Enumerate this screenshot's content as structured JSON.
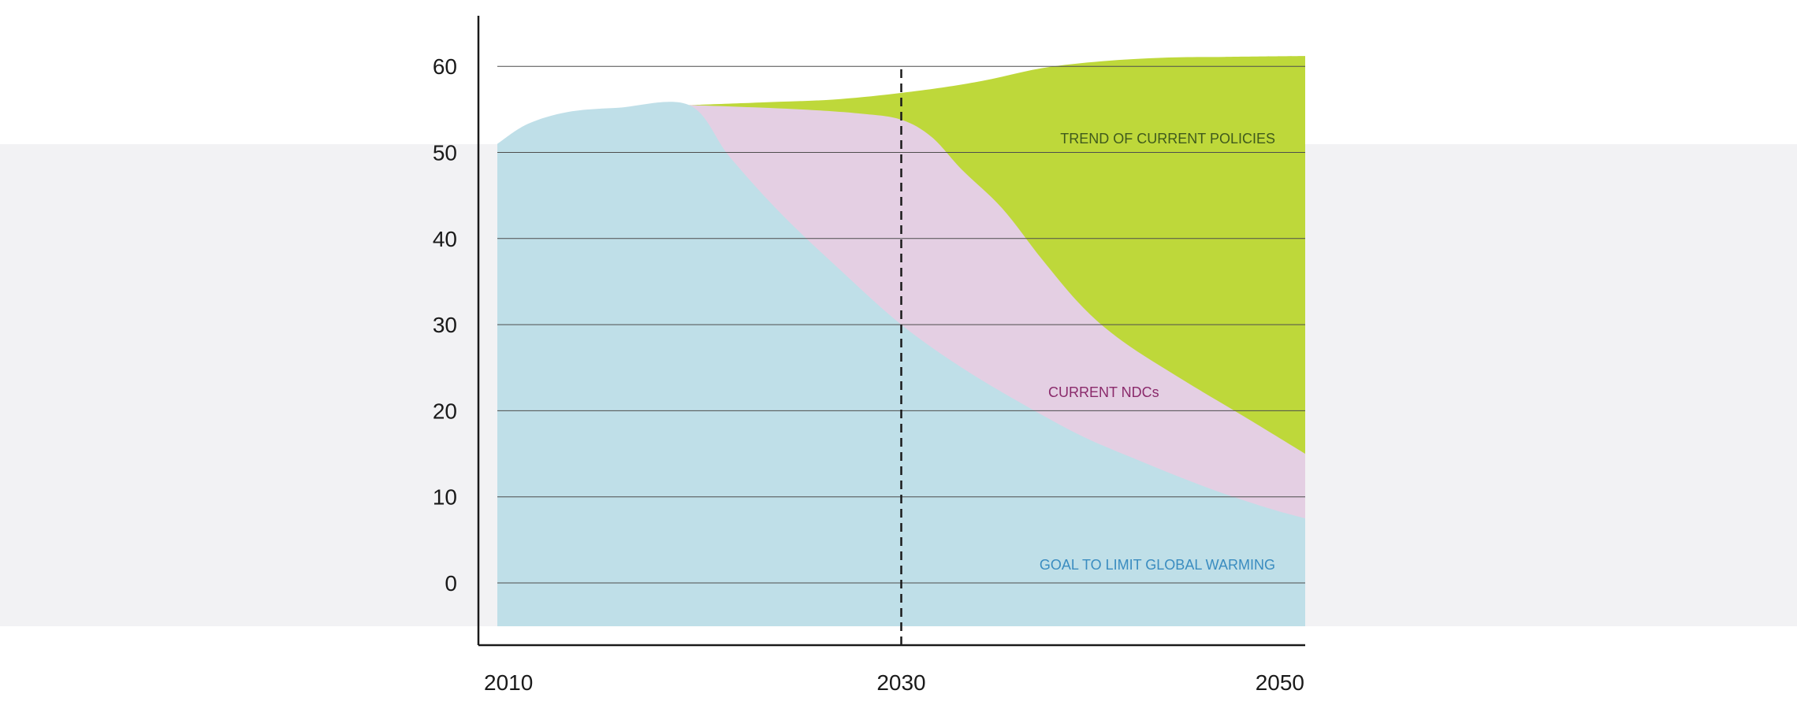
{
  "chart_data": {
    "type": "area",
    "title": "",
    "xlabel": "",
    "ylabel": "",
    "xlim": [
      2010,
      2050
    ],
    "ylim": [
      -5,
      65
    ],
    "x_ticks": [
      "2010",
      "2030",
      "2050"
    ],
    "y_ticks": [
      "0",
      "10",
      "20",
      "30",
      "40",
      "50",
      "60"
    ],
    "grid": true,
    "reference_line": {
      "x": 2030,
      "style": "dashed"
    },
    "series": [
      {
        "label": "TREND OF CURRENT POLICIES",
        "color": "#bed83a",
        "label_color": "#3f5a1c",
        "x": [
          2019.5,
          2023,
          2027,
          2031,
          2034,
          2037,
          2040,
          2043,
          2046,
          2050
        ],
        "y": [
          55.5,
          55.8,
          56.2,
          57.2,
          58.3,
          59.8,
          60.6,
          61.0,
          61.1,
          61.2
        ]
      },
      {
        "label": "CURRENT NDCs",
        "color": "#e4cfe3",
        "label_color": "#8a2a6b",
        "x": [
          2019.5,
          2022,
          2025,
          2028,
          2030,
          2031.5,
          2033,
          2035,
          2037,
          2039,
          2041,
          2044,
          2047,
          2050
        ],
        "y": [
          55.5,
          55.3,
          55.0,
          54.5,
          53.8,
          51.8,
          48.0,
          43.5,
          37.5,
          32.0,
          28.0,
          23.5,
          19.3,
          15.0
        ]
      },
      {
        "label": "GOAL TO LIMIT GLOBAL WARMING",
        "color": "#bfdfe8",
        "label_color": "#3a8cc0",
        "x": [
          2010,
          2011.5,
          2013.5,
          2016,
          2019.5,
          2021.5,
          2024,
          2027,
          2030,
          2033,
          2036,
          2039,
          2042,
          2045,
          2048,
          2050
        ],
        "y": [
          51.0,
          53.3,
          54.7,
          55.2,
          55.5,
          49.5,
          43.0,
          36.3,
          30.0,
          25.0,
          20.8,
          17.0,
          14.0,
          11.2,
          8.8,
          7.5
        ]
      }
    ]
  }
}
